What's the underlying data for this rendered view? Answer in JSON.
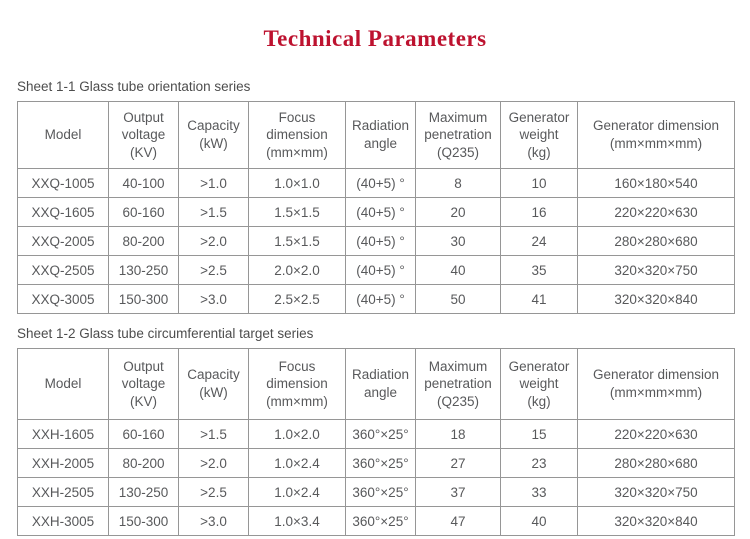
{
  "page": {
    "title": "Technical Parameters",
    "title_color": "#bd122f",
    "text_color": "#58595b",
    "border_color": "#969696"
  },
  "tables": [
    {
      "caption": "Sheet 1-1 Glass tube orientation series",
      "headers": [
        "Model",
        "Output\nvoltage\n(KV)",
        "Capacity\n(kW)",
        "Focus\ndimension\n(mm×mm)",
        "Radiation\nangle",
        "Maximum\npenetration\n(Q235)",
        "Generator\nweight\n(kg)",
        "Generator dimension\n(mm×mm×mm)"
      ],
      "rows": [
        [
          "XXQ-1005",
          "40-100",
          ">1.0",
          "1.0×1.0",
          "(40+5) °",
          "8",
          "10",
          "160×180×540"
        ],
        [
          "XXQ-1605",
          "60-160",
          ">1.5",
          "1.5×1.5",
          "(40+5) °",
          "20",
          "16",
          "220×220×630"
        ],
        [
          "XXQ-2005",
          "80-200",
          ">2.0",
          "1.5×1.5",
          "(40+5) °",
          "30",
          "24",
          "280×280×680"
        ],
        [
          "XXQ-2505",
          "130-250",
          ">2.5",
          "2.0×2.0",
          "(40+5) °",
          "40",
          "35",
          "320×320×750"
        ],
        [
          "XXQ-3005",
          "150-300",
          ">3.0",
          "2.5×2.5",
          "(40+5) °",
          "50",
          "41",
          "320×320×840"
        ]
      ]
    },
    {
      "caption": "Sheet 1-2 Glass tube circumferential target series",
      "headers": [
        "Model",
        "Output\nvoltage\n(KV)",
        "Capacity\n(kW)",
        "Focus\ndimension\n(mm×mm)",
        "Radiation\nangle",
        "Maximum\npenetration\n(Q235)",
        "Generator\nweight\n(kg)",
        "Generator dimension\n(mm×mm×mm)"
      ],
      "rows": [
        [
          "XXH-1605",
          "60-160",
          ">1.5",
          "1.0×2.0",
          "360°×25°",
          "18",
          "15",
          "220×220×630"
        ],
        [
          "XXH-2005",
          "80-200",
          ">2.0",
          "1.0×2.4",
          "360°×25°",
          "27",
          "23",
          "280×280×680"
        ],
        [
          "XXH-2505",
          "130-250",
          ">2.5",
          "1.0×2.4",
          "360°×25°",
          "37",
          "33",
          "320×320×750"
        ],
        [
          "XXH-3005",
          "150-300",
          ">3.0",
          "1.0×3.4",
          "360°×25°",
          "47",
          "40",
          "320×320×840"
        ]
      ]
    }
  ]
}
